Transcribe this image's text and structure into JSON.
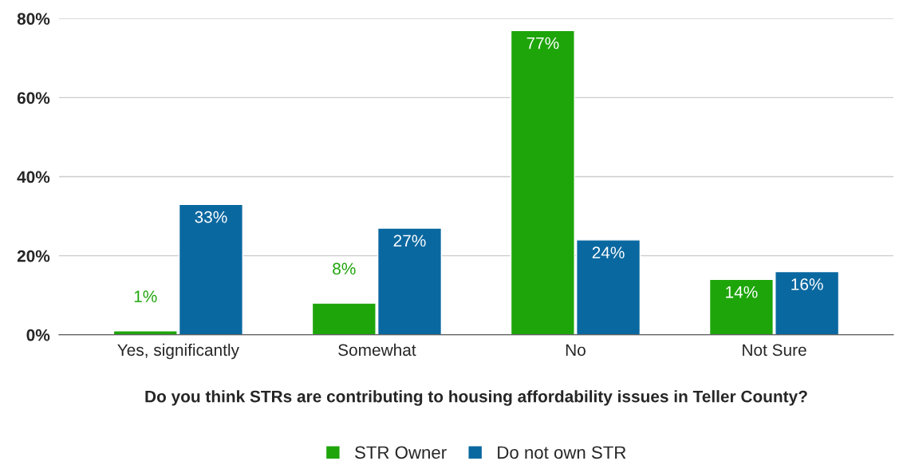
{
  "chart_data": {
    "type": "bar",
    "xlabel": "Do you think STRs are contributing to housing affordability issues in Teller County?",
    "categories": [
      "Yes, significantly",
      "Somewhat",
      "No",
      "Not Sure"
    ],
    "series": [
      {
        "name": "STR Owner",
        "color": "#1ea50a",
        "values": [
          1,
          8,
          77,
          14
        ],
        "value_labels": [
          "1%",
          "8%",
          "77%",
          "14%"
        ]
      },
      {
        "name": "Do not own STR",
        "color": "#0a68a0",
        "values": [
          33,
          27,
          24,
          16
        ],
        "value_labels": [
          "33%",
          "27%",
          "24%",
          "16%"
        ]
      }
    ],
    "ylim": [
      0,
      80
    ],
    "yticks": [
      {
        "value": 0,
        "label": "0%"
      },
      {
        "value": 20,
        "label": "20%"
      },
      {
        "value": 40,
        "label": "40%"
      },
      {
        "value": 60,
        "label": "60%"
      },
      {
        "value": 80,
        "label": "80%"
      }
    ],
    "grid": "y",
    "legend": "bottom"
  }
}
